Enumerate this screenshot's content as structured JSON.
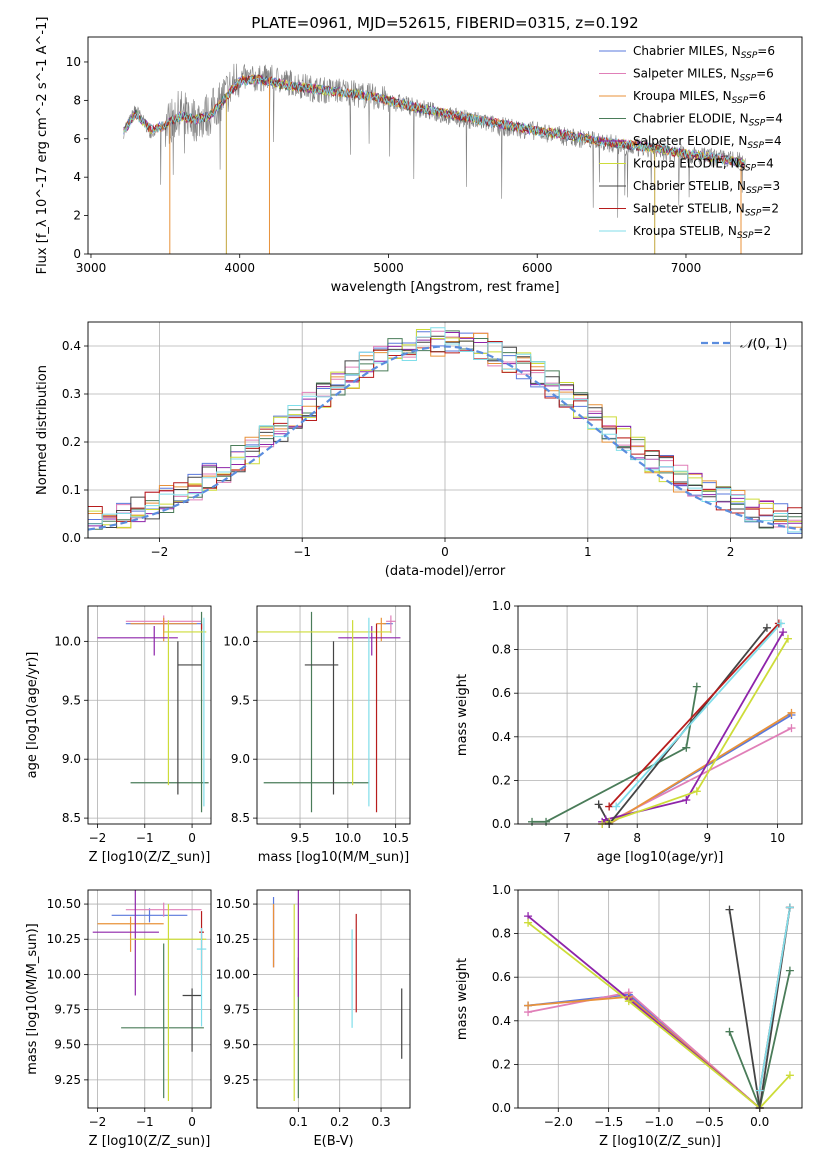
{
  "title": "PLATE=0961, MJD=52615, FIBERID=0315, z=0.192",
  "colors": {
    "Chabrier MILES": "#5a78dc",
    "Salpeter MILES": "#e07fb8",
    "Kroupa MILES": "#e8923a",
    "Chabrier ELODIE": "#4a7c59",
    "Salpeter ELODIE": "#8e24aa",
    "Kroupa ELODIE": "#cddc39",
    "Chabrier STELIB": "#444444",
    "Salpeter STELIB": "#b71c1c",
    "Kroupa STELIB": "#80deea",
    "data": "#808080",
    "normal": "#5b8dde"
  },
  "legend_labels": [
    "Chabrier MILES, N_SSP=6",
    "Salpeter MILES, N_SSP=6",
    "Kroupa MILES, N_SSP=6",
    "Chabrier ELODIE, N_SSP=4",
    "Salpeter ELODIE, N_SSP=4",
    "Kroupa ELODIE, N_SSP=4",
    "Chabrier STELIB, N_SSP=3",
    "Salpeter STELIB, N_SSP=2",
    "Kroupa STELIB, N_SSP=2"
  ],
  "chart_data": [
    {
      "id": "spectrum",
      "type": "line",
      "xlabel": "wavelength [Angstrom, rest frame]",
      "ylabel": "Flux [f_λ 10^-17 erg cm^-2 s^-1 A^-1]",
      "xlim": [
        2980,
        7780
      ],
      "ylim": [
        0,
        11.3
      ],
      "xticks": [
        3000,
        4000,
        5000,
        6000,
        7000
      ],
      "yticks": [
        0,
        2,
        4,
        6,
        8,
        10
      ],
      "legend": "top-right",
      "data_series": {
        "name": "data",
        "x": [
          3220,
          3300,
          3400,
          3500,
          3600,
          3700,
          3800,
          3900,
          4000,
          4100,
          4200,
          4300,
          4400,
          4500,
          4600,
          4700,
          4800,
          4900,
          5000,
          5200,
          5400,
          5600,
          5800,
          6000,
          6200,
          6400,
          6600,
          6800,
          7000,
          7200,
          7400
        ],
        "y": [
          6.3,
          7.6,
          6.3,
          6.7,
          7.4,
          7.0,
          7.3,
          8.3,
          9.2,
          9.1,
          9.2,
          9.0,
          8.8,
          8.6,
          8.5,
          8.5,
          8.3,
          8.2,
          8.0,
          7.6,
          7.2,
          6.9,
          6.6,
          6.4,
          6.1,
          5.9,
          5.6,
          5.4,
          5.2,
          5.0,
          4.8
        ]
      },
      "model_series": {
        "x": [
          3220,
          3300,
          3400,
          3500,
          3600,
          3700,
          3800,
          3900,
          4000,
          4100,
          4200,
          4300,
          4400,
          4500,
          4600,
          4700,
          4800,
          4900,
          5000,
          5200,
          5400,
          5600,
          5800,
          6000,
          6200,
          6400,
          6600,
          6800,
          7000,
          7200,
          7400
        ],
        "y": [
          6.4,
          7.3,
          6.5,
          6.7,
          7.2,
          7.0,
          7.2,
          8.1,
          9.0,
          9.1,
          9.0,
          8.8,
          8.7,
          8.6,
          8.5,
          8.4,
          8.3,
          8.2,
          8.0,
          7.6,
          7.3,
          7.0,
          6.7,
          6.4,
          6.2,
          5.9,
          5.7,
          5.5,
          5.2,
          5.0,
          4.7
        ]
      },
      "absorption_lines": [
        3530,
        3910,
        4200,
        6790,
        7370
      ]
    },
    {
      "id": "residuals",
      "type": "line",
      "xlabel": "(data-model)/error",
      "ylabel": "Normed distribution",
      "xlim": [
        -2.5,
        2.5
      ],
      "ylim": [
        0,
        0.45
      ],
      "xticks": [
        -2,
        -1,
        0,
        1,
        2
      ],
      "yticks": [
        0.0,
        0.1,
        0.2,
        0.3,
        0.4
      ],
      "legend_label": "N(0,1)",
      "bin_width": 0.1,
      "bin_start": -2.5
    },
    {
      "id": "age-vs-Z",
      "type": "scatter",
      "xlabel": "Z [log10(Z/Z_sun)]",
      "ylabel": "age [log10(age/yr)]",
      "xlim": [
        -2.2,
        0.4
      ],
      "ylim": [
        8.45,
        10.3
      ],
      "xticks": [
        -2,
        -1,
        0
      ],
      "yticks": [
        8.5,
        9.0,
        9.5,
        10.0
      ],
      "points": [
        {
          "model": "Chabrier MILES",
          "x": -0.4,
          "y": 10.15,
          "xerr": [
            1.0,
            0.6
          ],
          "yerr": [
            0.0,
            0.0
          ]
        },
        {
          "model": "Salpeter MILES",
          "x": -0.6,
          "y": 10.17,
          "xerr": [
            0.8,
            0.8
          ],
          "yerr": [
            0.1,
            0.05
          ]
        },
        {
          "model": "Kroupa MILES",
          "x": -0.6,
          "y": 10.15,
          "xerr": [
            0.7,
            0.7
          ],
          "yerr": [
            0.15,
            0.05
          ]
        },
        {
          "model": "Chabrier ELODIE",
          "x": 0.2,
          "y": 8.8,
          "xerr": [
            1.5,
            0.15
          ],
          "yerr": [
            0.25,
            1.45
          ]
        },
        {
          "model": "Salpeter ELODIE",
          "x": -0.8,
          "y": 10.03,
          "xerr": [
            1.2,
            0.5
          ],
          "yerr": [
            0.15,
            0.1
          ]
        },
        {
          "model": "Kroupa ELODIE",
          "x": -0.5,
          "y": 10.08,
          "xerr": [
            0.1,
            0.8
          ],
          "yerr": [
            1.3,
            0.1
          ]
        },
        {
          "model": "Chabrier STELIB",
          "x": -0.3,
          "y": 9.8,
          "xerr": [
            0.0,
            0.5
          ],
          "yerr": [
            1.1,
            0.2
          ]
        },
        {
          "model": "Salpeter STELIB",
          "x": 0.2,
          "y": 10.15,
          "xerr": [
            0.0,
            0.0
          ],
          "yerr": [
            0.05,
            0.0
          ]
        },
        {
          "model": "Kroupa STELIB",
          "x": 0.25,
          "y": 10.1,
          "xerr": [
            0.0,
            0.0
          ],
          "yerr": [
            1.5,
            0.1
          ]
        }
      ]
    },
    {
      "id": "age-vs-mass",
      "type": "scatter",
      "xlabel": "mass [log10(M/M_sun)]",
      "ylabel": "",
      "xlim": [
        9.05,
        10.65
      ],
      "ylim": [
        8.45,
        10.3
      ],
      "xticks": [
        9.5,
        10.0,
        10.5
      ],
      "yticks": [
        8.5,
        9.0,
        9.5,
        10.0
      ],
      "points": [
        {
          "model": "Chabrier MILES",
          "x": 10.42,
          "y": 10.15,
          "xerr": [
            0.05,
            0.05
          ],
          "yerr": [
            0.0,
            0.0
          ]
        },
        {
          "model": "Salpeter MILES",
          "x": 10.45,
          "y": 10.17,
          "xerr": [
            0.05,
            0.05
          ],
          "yerr": [
            0.1,
            0.05
          ]
        },
        {
          "model": "Kroupa MILES",
          "x": 10.35,
          "y": 10.15,
          "xerr": [
            0.05,
            0.05
          ],
          "yerr": [
            0.15,
            0.05
          ]
        },
        {
          "model": "Chabrier ELODIE",
          "x": 9.62,
          "y": 8.8,
          "xerr": [
            0.5,
            0.6
          ],
          "yerr": [
            0.25,
            1.45
          ]
        },
        {
          "model": "Salpeter ELODIE",
          "x": 10.25,
          "y": 10.03,
          "xerr": [
            0.35,
            0.3
          ],
          "yerr": [
            0.15,
            0.1
          ]
        },
        {
          "model": "Kroupa ELODIE",
          "x": 10.05,
          "y": 10.08,
          "xerr": [
            1.0,
            0.4
          ],
          "yerr": [
            1.3,
            0.1
          ]
        },
        {
          "model": "Chabrier STELIB",
          "x": 9.85,
          "y": 9.8,
          "xerr": [
            0.3,
            0.05
          ],
          "yerr": [
            1.1,
            0.2
          ]
        },
        {
          "model": "Salpeter STELIB",
          "x": 10.3,
          "y": 10.15,
          "xerr": [
            0.0,
            0.0
          ],
          "yerr": [
            1.6,
            0.0
          ]
        },
        {
          "model": "Kroupa STELIB",
          "x": 10.22,
          "y": 10.1,
          "xerr": [
            0.0,
            0.0
          ],
          "yerr": [
            1.5,
            0.1
          ]
        }
      ]
    },
    {
      "id": "weight-vs-age",
      "type": "line",
      "xlabel": "age [log10(age/yr)]",
      "ylabel": "mass weight",
      "xlim": [
        6.3,
        10.35
      ],
      "ylim": [
        0,
        1.0
      ],
      "xticks": [
        7,
        8,
        9,
        10
      ],
      "yticks": [
        0.0,
        0.2,
        0.4,
        0.6,
        0.8,
        1.0
      ],
      "series": [
        {
          "model": "Chabrier MILES",
          "x": [
            7.5,
            7.6,
            10.2
          ],
          "y": [
            0.0,
            0.0,
            0.5
          ]
        },
        {
          "model": "Salpeter MILES",
          "x": [
            7.5,
            7.6,
            10.2
          ],
          "y": [
            0.0,
            0.01,
            0.44
          ]
        },
        {
          "model": "Kroupa MILES",
          "x": [
            7.5,
            7.6,
            10.2
          ],
          "y": [
            0.0,
            0.0,
            0.51
          ]
        },
        {
          "model": "Chabrier ELODIE",
          "x": [
            6.5,
            6.7,
            8.7,
            8.85
          ],
          "y": [
            0.01,
            0.01,
            0.35,
            0.63
          ]
        },
        {
          "model": "Salpeter ELODIE",
          "x": [
            7.5,
            7.55,
            8.7,
            10.08
          ],
          "y": [
            0.01,
            0.02,
            0.11,
            0.88
          ]
        },
        {
          "model": "Kroupa ELODIE",
          "x": [
            7.5,
            7.6,
            8.85,
            10.15
          ],
          "y": [
            0.0,
            0.01,
            0.15,
            0.85
          ]
        },
        {
          "model": "Chabrier STELIB",
          "x": [
            7.45,
            7.6,
            9.85
          ],
          "y": [
            0.09,
            0.0,
            0.9
          ]
        },
        {
          "model": "Salpeter STELIB",
          "x": [
            7.6,
            10.02
          ],
          "y": [
            0.08,
            0.92
          ]
        },
        {
          "model": "Kroupa STELIB",
          "x": [
            7.7,
            10.05
          ],
          "y": [
            0.08,
            0.92
          ]
        }
      ]
    },
    {
      "id": "mass-vs-Z",
      "type": "scatter",
      "xlabel": "Z [log10(Z/Z_sun)]",
      "ylabel": "mass [log10(M/M_sun)]",
      "xlim": [
        -2.2,
        0.4
      ],
      "ylim": [
        9.05,
        10.6
      ],
      "xticks": [
        -2,
        -1,
        0
      ],
      "yticks": [
        9.25,
        9.5,
        9.75,
        10.0,
        10.25,
        10.5
      ],
      "points": [
        {
          "model": "Chabrier MILES",
          "x": -0.9,
          "y": 10.42,
          "xerr": [
            0.8,
            0.8
          ],
          "yerr": [
            0.05,
            0.05
          ]
        },
        {
          "model": "Salpeter MILES",
          "x": -0.6,
          "y": 10.46,
          "xerr": [
            0.8,
            0.8
          ],
          "yerr": [
            0.05,
            0.05
          ]
        },
        {
          "model": "Kroupa MILES",
          "x": -1.3,
          "y": 10.36,
          "xerr": [
            0.7,
            0.7
          ],
          "yerr": [
            0.2,
            0.05
          ]
        },
        {
          "model": "Chabrier ELODIE",
          "x": -0.6,
          "y": 9.62,
          "xerr": [
            0.9,
            0.85
          ],
          "yerr": [
            0.5,
            0.6
          ]
        },
        {
          "model": "Salpeter ELODIE",
          "x": -1.2,
          "y": 10.3,
          "xerr": [
            0.9,
            0.5
          ],
          "yerr": [
            0.45,
            0.3
          ]
        },
        {
          "model": "Kroupa ELODIE",
          "x": -0.5,
          "y": 10.25,
          "xerr": [
            0.8,
            0.8
          ],
          "yerr": [
            1.15,
            0.25
          ]
        },
        {
          "model": "Chabrier STELIB",
          "x": 0.0,
          "y": 9.85,
          "xerr": [
            0.2,
            0.2
          ],
          "yerr": [
            0.4,
            0.05
          ]
        },
        {
          "model": "Salpeter STELIB",
          "x": 0.2,
          "y": 10.3,
          "xerr": [
            0.05,
            0.05
          ],
          "yerr": [
            0.3,
            0.15
          ]
        },
        {
          "model": "Kroupa STELIB",
          "x": 0.2,
          "y": 10.18,
          "xerr": [
            0.1,
            0.1
          ],
          "yerr": [
            0.55,
            0.15
          ]
        }
      ]
    },
    {
      "id": "mass-vs-ebv",
      "type": "scatter",
      "xlabel": "E(B-V)",
      "ylabel": "",
      "xlim": [
        0.0,
        0.37
      ],
      "ylim": [
        9.05,
        10.6
      ],
      "xticks": [
        0.1,
        0.2,
        0.3
      ],
      "yticks": [
        9.25,
        9.5,
        9.75,
        10.0,
        10.25,
        10.5
      ],
      "points": [
        {
          "model": "Chabrier MILES",
          "x": 0.04,
          "y": 10.3,
          "yerr": [
            0.25,
            0.25
          ]
        },
        {
          "model": "Salpeter MILES",
          "x": 0.04,
          "y": 10.27,
          "yerr": [
            0.22,
            0.22
          ]
        },
        {
          "model": "Kroupa MILES",
          "x": 0.04,
          "y": 10.3,
          "yerr": [
            0.25,
            0.2
          ]
        },
        {
          "model": "Chabrier ELODIE",
          "x": 0.1,
          "y": 9.62,
          "yerr": [
            0.5,
            0.5
          ]
        },
        {
          "model": "Salpeter ELODIE",
          "x": 0.1,
          "y": 10.22,
          "yerr": [
            0.38,
            0.38
          ]
        },
        {
          "model": "Kroupa ELODIE",
          "x": 0.09,
          "y": 9.8,
          "yerr": [
            0.7,
            0.7
          ]
        },
        {
          "model": "Chabrier STELIB",
          "x": 0.35,
          "y": 9.65,
          "yerr": [
            0.25,
            0.25
          ]
        },
        {
          "model": "Salpeter STELIB",
          "x": 0.24,
          "y": 10.08,
          "yerr": [
            0.35,
            0.35
          ]
        },
        {
          "model": "Kroupa STELIB",
          "x": 0.23,
          "y": 9.97,
          "yerr": [
            0.35,
            0.35
          ]
        }
      ]
    },
    {
      "id": "weight-vs-Z",
      "type": "line",
      "xlabel": "Z [log10(Z/Z_sun)]",
      "ylabel": "mass weight",
      "xlim": [
        -2.4,
        0.42
      ],
      "ylim": [
        0,
        1.0
      ],
      "xticks": [
        -2.0,
        -1.5,
        -1.0,
        -0.5,
        0.0
      ],
      "yticks": [
        0.0,
        0.2,
        0.4,
        0.6,
        0.8,
        1.0
      ],
      "series": [
        {
          "model": "Chabrier MILES",
          "x": [
            -2.3,
            -1.3,
            0.0
          ],
          "y": [
            0.47,
            0.52,
            0.0
          ]
        },
        {
          "model": "Salpeter MILES",
          "x": [
            -2.3,
            -1.3,
            0.0
          ],
          "y": [
            0.44,
            0.53,
            0.0
          ]
        },
        {
          "model": "Kroupa MILES",
          "x": [
            -2.3,
            -1.3,
            0.0
          ],
          "y": [
            0.47,
            0.51,
            0.0
          ]
        },
        {
          "model": "Chabrier ELODIE",
          "x": [
            -0.3,
            0.0,
            0.3
          ],
          "y": [
            0.35,
            0.0,
            0.63
          ]
        },
        {
          "model": "Salpeter ELODIE",
          "x": [
            -2.3,
            -1.3,
            0.0
          ],
          "y": [
            0.88,
            0.5,
            0.0
          ]
        },
        {
          "model": "Kroupa ELODIE",
          "x": [
            -2.3,
            -1.3,
            0.0,
            0.3
          ],
          "y": [
            0.85,
            0.49,
            0.0,
            0.15
          ]
        },
        {
          "model": "Chabrier STELIB",
          "x": [
            -0.3,
            0.0,
            0.3
          ],
          "y": [
            0.91,
            0.0,
            0.92
          ]
        },
        {
          "model": "Salpeter STELIB",
          "x": [
            0.0,
            0.3
          ],
          "y": [
            0.08,
            0.92
          ]
        },
        {
          "model": "Kroupa STELIB",
          "x": [
            0.0,
            0.3
          ],
          "y": [
            0.08,
            0.92
          ]
        }
      ]
    }
  ]
}
